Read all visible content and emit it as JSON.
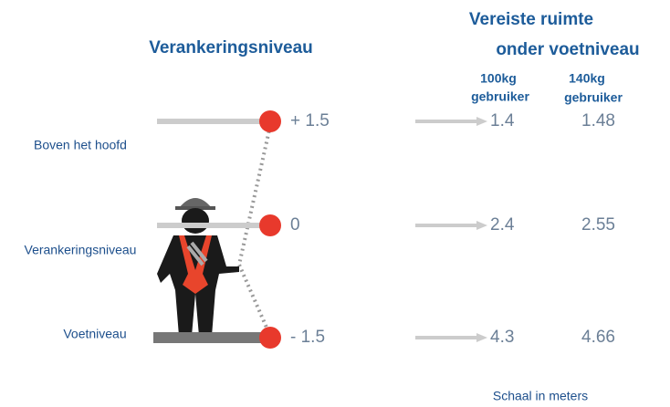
{
  "left_title": "Verankeringsniveau",
  "right_title": {
    "line1": "Vereiste ruimte",
    "line2": "onder voetniveau"
  },
  "columns": [
    {
      "line1": "100kg",
      "line2": "gebruiker"
    },
    {
      "line1": "140kg",
      "line2": "gebruiker"
    }
  ],
  "rows": [
    {
      "label": "Boven het hoofd",
      "level": "+ 1.5",
      "values": [
        "1.4",
        "1.48"
      ]
    },
    {
      "label": "Verankeringsniveau",
      "level": "0",
      "values": [
        "2.4",
        "2.55"
      ]
    },
    {
      "label": "Voetniveau",
      "level": "- 1.5",
      "values": [
        "4.3",
        "4.66"
      ]
    }
  ],
  "footer": "Schaal in meters"
}
